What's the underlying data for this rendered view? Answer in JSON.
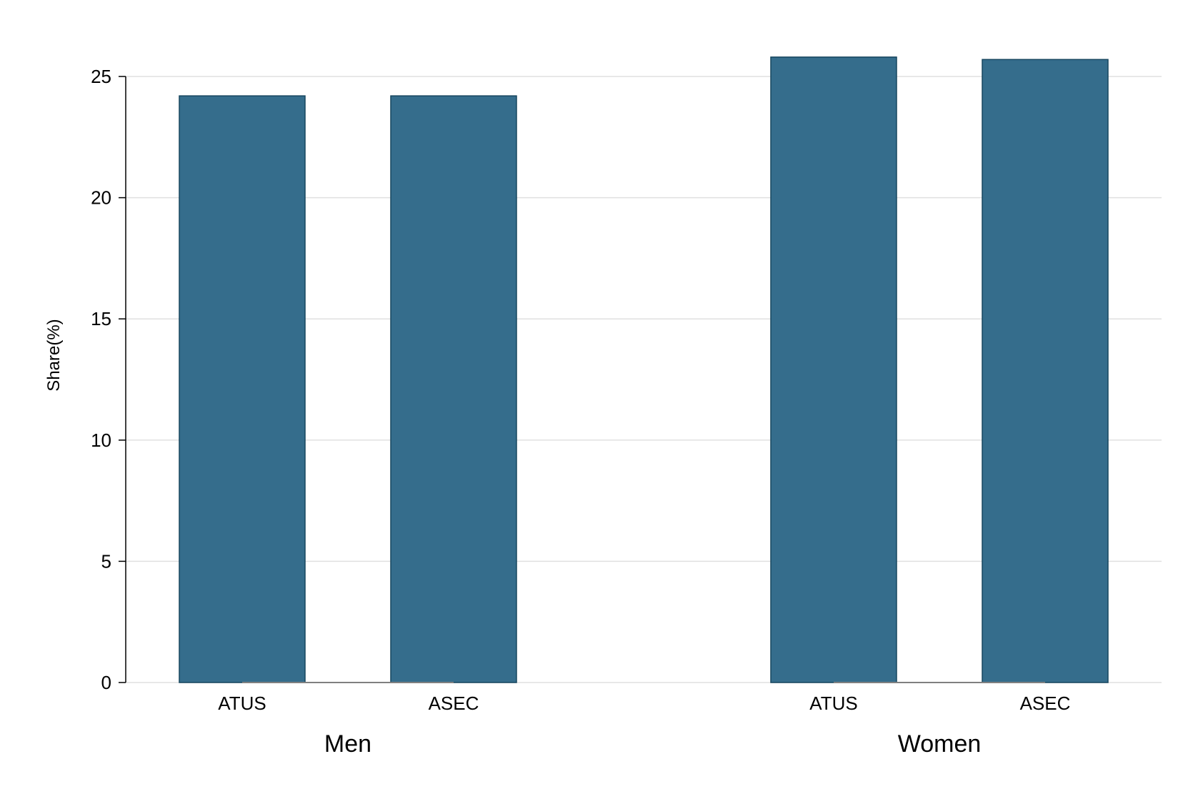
{
  "chart_data": {
    "type": "bar",
    "title": "",
    "xlabel": "",
    "ylabel": "Share(%)",
    "ylim": [
      0,
      27
    ],
    "yticks": [
      0,
      5,
      10,
      15,
      20,
      25
    ],
    "grid": true,
    "legend": "none",
    "bar_color": "#356d8c",
    "bar_edge_color": "#16465f",
    "groups": [
      {
        "name": "Men",
        "categories": [
          "ATUS",
          "ASEC"
        ],
        "values": [
          24.2,
          24.2
        ]
      },
      {
        "name": "Women",
        "categories": [
          "ATUS",
          "ASEC"
        ],
        "values": [
          25.8,
          25.7
        ]
      }
    ]
  }
}
